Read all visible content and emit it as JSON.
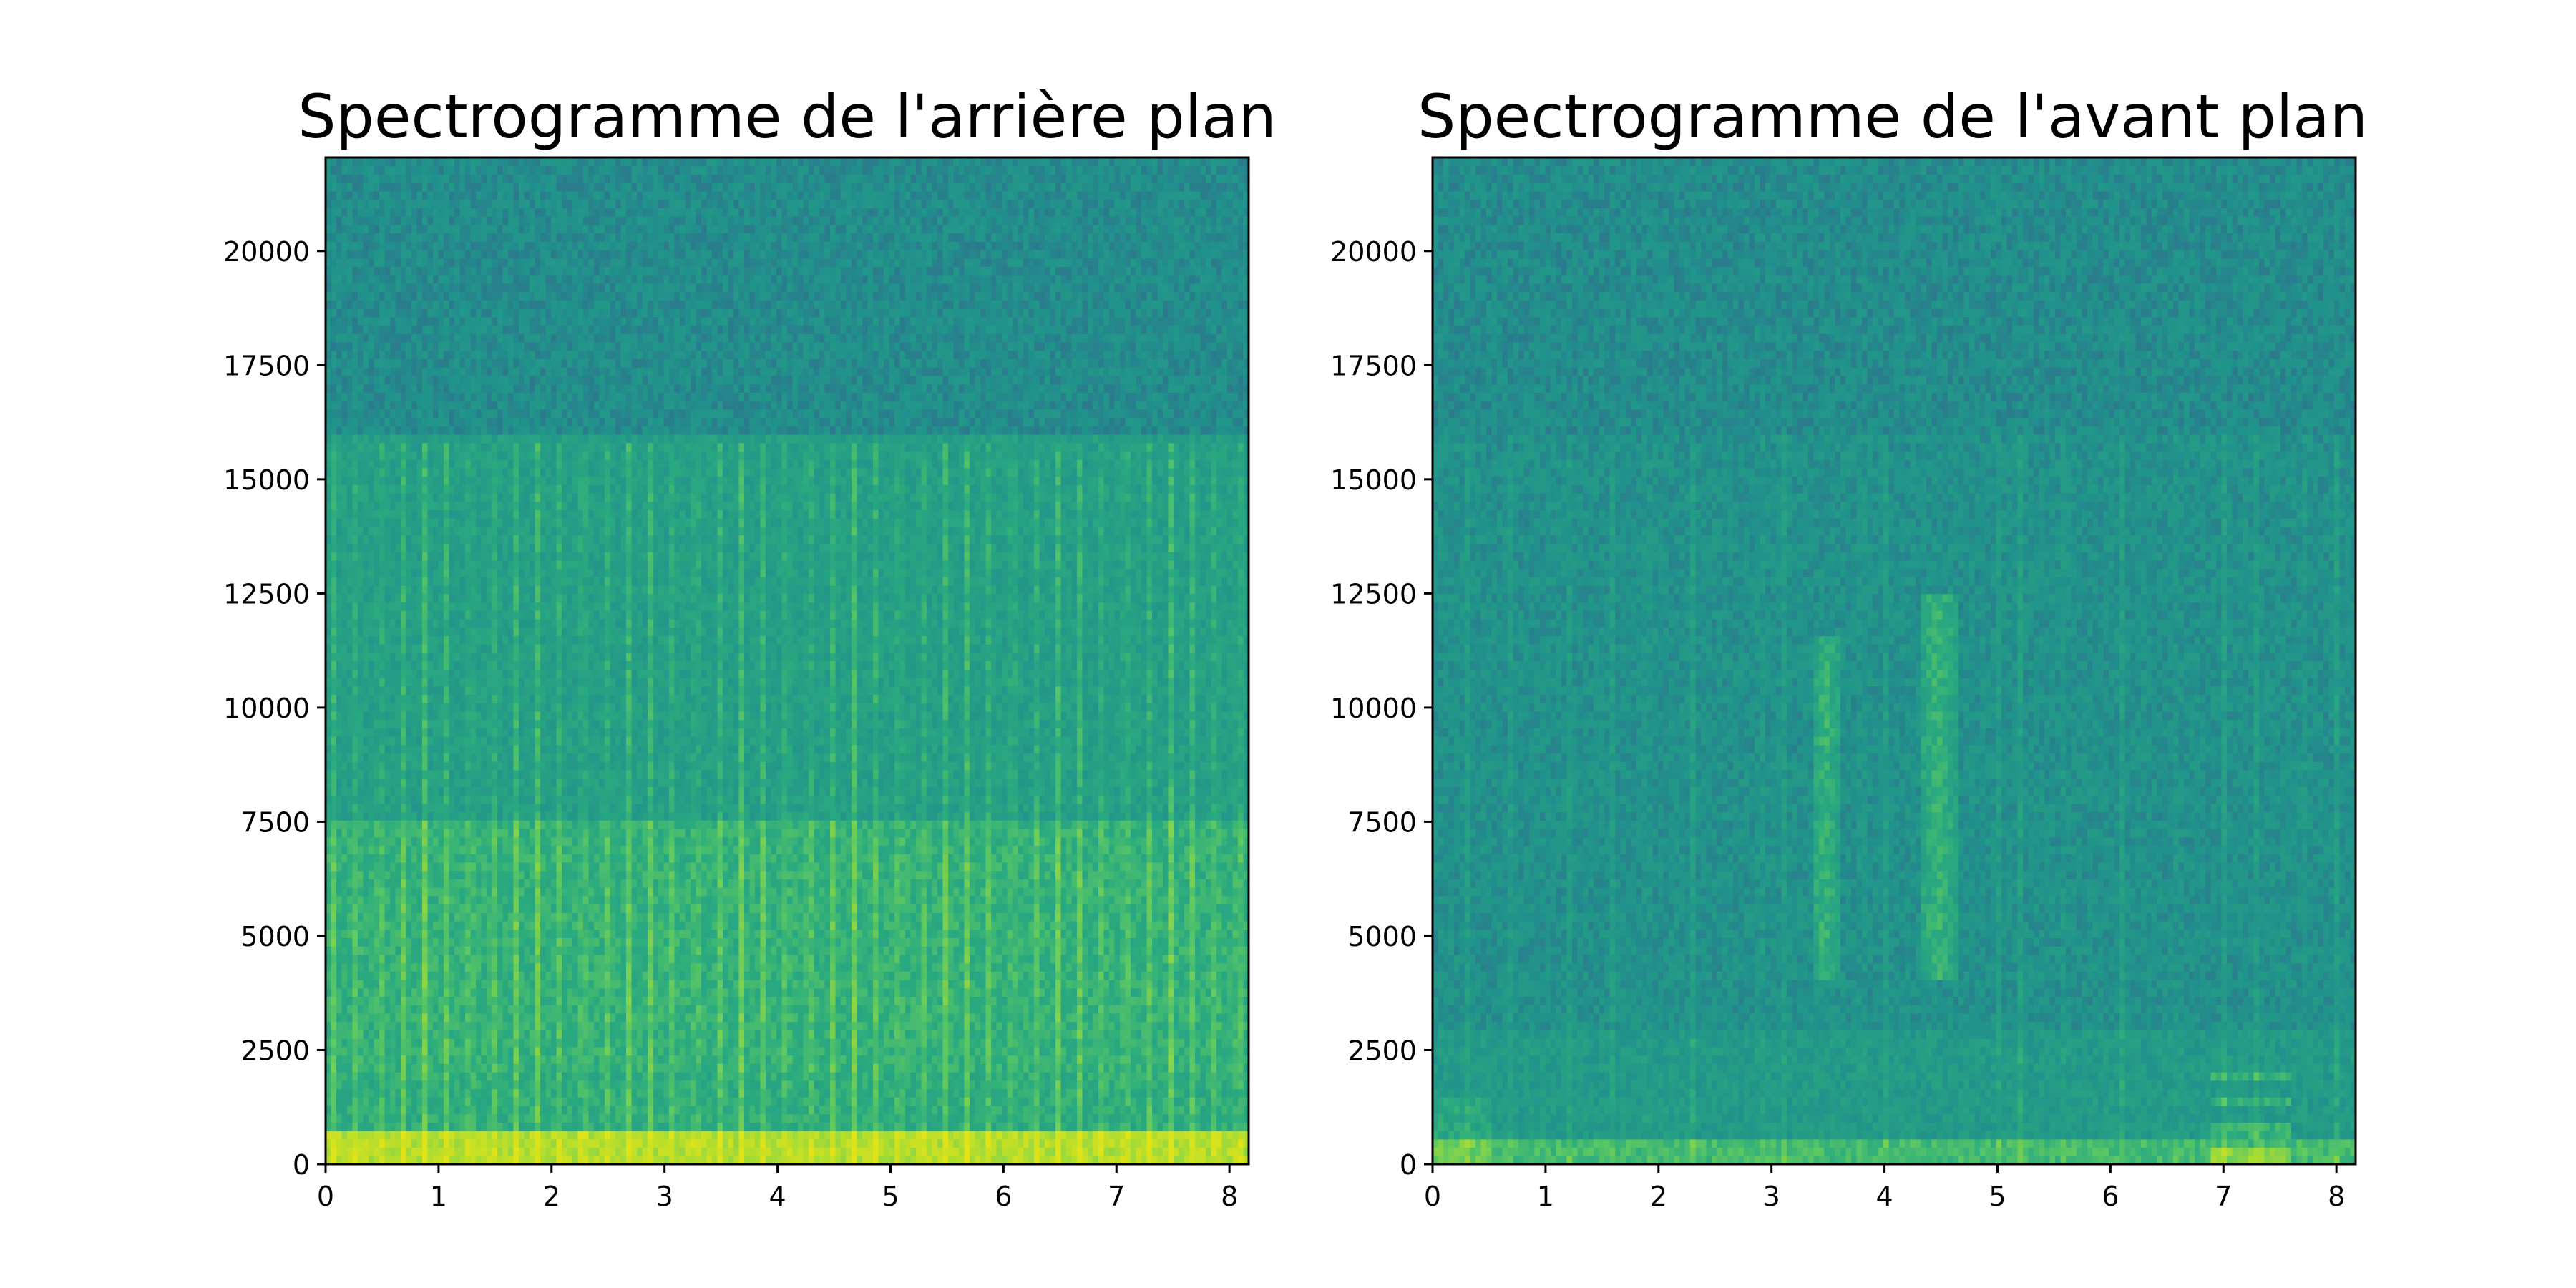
{
  "chart_data": [
    {
      "type": "heatmap",
      "variant": "spectrogram",
      "title": "Spectrogramme de l'arrière plan",
      "xlabel": "",
      "ylabel": "",
      "xlim": [
        0,
        8.17
      ],
      "ylim": [
        0,
        22050
      ],
      "xticks": [
        0,
        1,
        2,
        3,
        4,
        5,
        6,
        7,
        8
      ],
      "yticks": [
        0,
        2500,
        5000,
        7500,
        10000,
        12500,
        15000,
        17500,
        20000
      ],
      "colormap": "viridis",
      "grid": false,
      "features": {
        "beat_count": 41,
        "beat_interval_s": 0.2,
        "beat_start_s": 0.48,
        "beat_max_freq_hz": 15800,
        "energy_rolloff_hz": 16000,
        "low_band_hz": 800,
        "mid_boost_band_hz": [
          2000,
          7500
        ]
      }
    },
    {
      "type": "heatmap",
      "variant": "spectrogram",
      "title": "Spectrogramme de l'avant plan",
      "xlabel": "",
      "ylabel": "",
      "xlim": [
        0,
        8.17
      ],
      "ylim": [
        0,
        22050
      ],
      "xticks": [
        0,
        1,
        2,
        3,
        4,
        5,
        6,
        7,
        8
      ],
      "yticks": [
        0,
        2500,
        5000,
        7500,
        10000,
        12500,
        15000,
        17500,
        20000
      ],
      "colormap": "viridis",
      "grid": false,
      "features": {
        "energy_rolloff_hz": 16000,
        "low_band_hz": 600,
        "bursts": [
          {
            "start_s": 3.35,
            "end_s": 3.6,
            "min_freq_hz": 4000,
            "max_freq_hz": 11500
          },
          {
            "start_s": 4.3,
            "end_s": 4.65,
            "min_freq_hz": 4000,
            "max_freq_hz": 12500
          }
        ],
        "harmonic_patch": {
          "start_s": 6.9,
          "end_s": 7.6,
          "max_freq_hz": 2000
        },
        "transients_s": [
          0.3,
          0.7,
          1.2,
          1.6,
          1.9,
          2.3,
          2.9,
          3.1,
          3.8,
          4.0,
          5.0,
          5.2,
          5.6,
          6.1,
          6.6,
          7.0,
          7.3,
          7.7,
          8.0
        ]
      }
    }
  ]
}
